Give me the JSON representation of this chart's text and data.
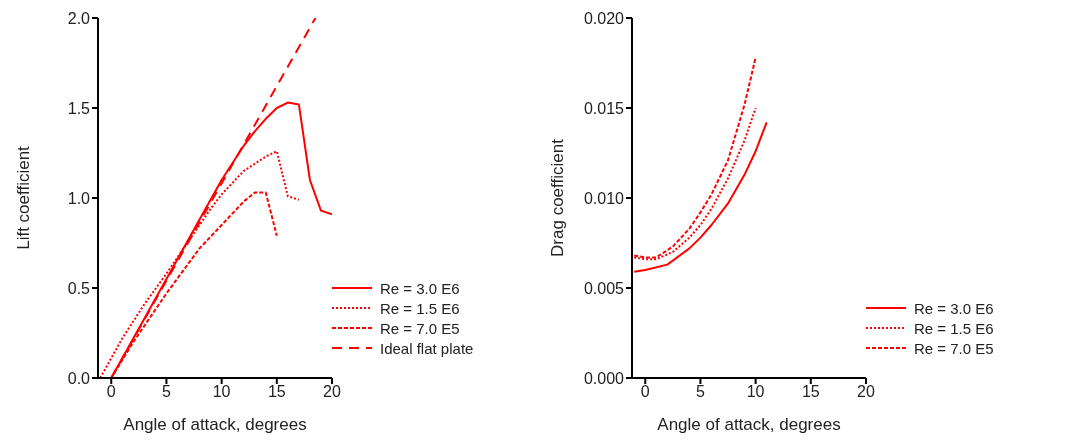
{
  "chart_data": [
    {
      "type": "line",
      "xlabel": "Angle of attack, degrees",
      "ylabel": "Lift coefficient",
      "xlim": [
        -1.2,
        20
      ],
      "xticks": [
        0,
        5,
        10,
        15,
        20
      ],
      "ylim": [
        0,
        2
      ],
      "yticks": [
        {
          "value": 0,
          "label": "0.0"
        },
        0.5,
        {
          "value": 1,
          "label": "1.0"
        },
        1.5,
        {
          "value": 2,
          "label": "2.0"
        }
      ],
      "legend": "bottom right",
      "marker": "none",
      "series": [
        {
          "name": "Re = 3.0 E6",
          "color": "#ff0000",
          "line_style": "solid",
          "x": [
            0,
            2,
            4,
            6,
            8,
            10,
            12,
            13,
            14,
            15,
            16,
            17,
            18,
            19,
            20
          ],
          "values": [
            0,
            0.22,
            0.44,
            0.66,
            0.88,
            1.1,
            1.29,
            1.37,
            1.44,
            1.5,
            1.53,
            1.52,
            1.1,
            0.93,
            0.91
          ]
        },
        {
          "name": "Re = 1.5 E6",
          "color": "#ff0000",
          "line_style": "dotted",
          "x": [
            -1,
            1,
            3,
            5,
            7,
            9,
            10,
            12,
            14,
            15,
            16,
            17
          ],
          "values": [
            0,
            0.22,
            0.41,
            0.58,
            0.76,
            0.94,
            1.02,
            1.15,
            1.23,
            1.26,
            1.01,
            0.99
          ]
        },
        {
          "name": "Re = 7.0 E5",
          "color": "#ff0000",
          "line_style": "dashed",
          "x": [
            0,
            2,
            5,
            8,
            10,
            12,
            13,
            14,
            15
          ],
          "values": [
            0,
            0.2,
            0.47,
            0.72,
            0.85,
            0.98,
            1.03,
            1.03,
            0.79
          ]
        },
        {
          "name": "Ideal flat plate",
          "color": "#ff0000",
          "line_style": "dashed",
          "x": [
            0,
            18.5
          ],
          "values": [
            0,
            2
          ]
        }
      ]
    },
    {
      "type": "line",
      "xlabel": "Angle of attack, degrees",
      "ylabel": "Drag coefficient",
      "xlim": [
        -1.2,
        20
      ],
      "xticks": [
        0,
        5,
        10,
        15,
        20
      ],
      "ylim": [
        0,
        0.02
      ],
      "yticks": [
        {
          "value": 0,
          "label": "0.000"
        },
        {
          "value": 0.005,
          "label": "0.005"
        },
        {
          "value": 0.01,
          "label": "0.010"
        },
        {
          "value": 0.015,
          "label": "0.015"
        },
        {
          "value": 0.02,
          "label": "0.020"
        }
      ],
      "legend": "bottom right",
      "marker": "none",
      "series": [
        {
          "name": "Re = 3.0 E6",
          "color": "#ff0000",
          "line_style": "solid",
          "x": [
            -1,
            0,
            2,
            4,
            5,
            6,
            7.5,
            9,
            10,
            11
          ],
          "values": [
            0.0059,
            0.006,
            0.0063,
            0.0072,
            0.0078,
            0.0085,
            0.0097,
            0.0113,
            0.0126,
            0.0142
          ]
        },
        {
          "name": "Re = 1.5 E6",
          "color": "#ff0000",
          "line_style": "dotted",
          "x": [
            -1,
            0,
            1,
            2.5,
            4,
            5,
            6,
            7.5,
            9,
            10
          ],
          "values": [
            0.0067,
            0.0066,
            0.0066,
            0.007,
            0.0078,
            0.0085,
            0.0094,
            0.0111,
            0.0132,
            0.015
          ]
        },
        {
          "name": "Re = 7.0 E5",
          "color": "#ff0000",
          "line_style": "dashed",
          "x": [
            -1,
            0,
            1,
            2.5,
            4,
            5,
            6,
            7.5,
            9,
            10
          ],
          "values": [
            0.0068,
            0.0067,
            0.0067,
            0.0073,
            0.0083,
            0.0092,
            0.0102,
            0.0121,
            0.0152,
            0.0178
          ]
        }
      ]
    }
  ]
}
